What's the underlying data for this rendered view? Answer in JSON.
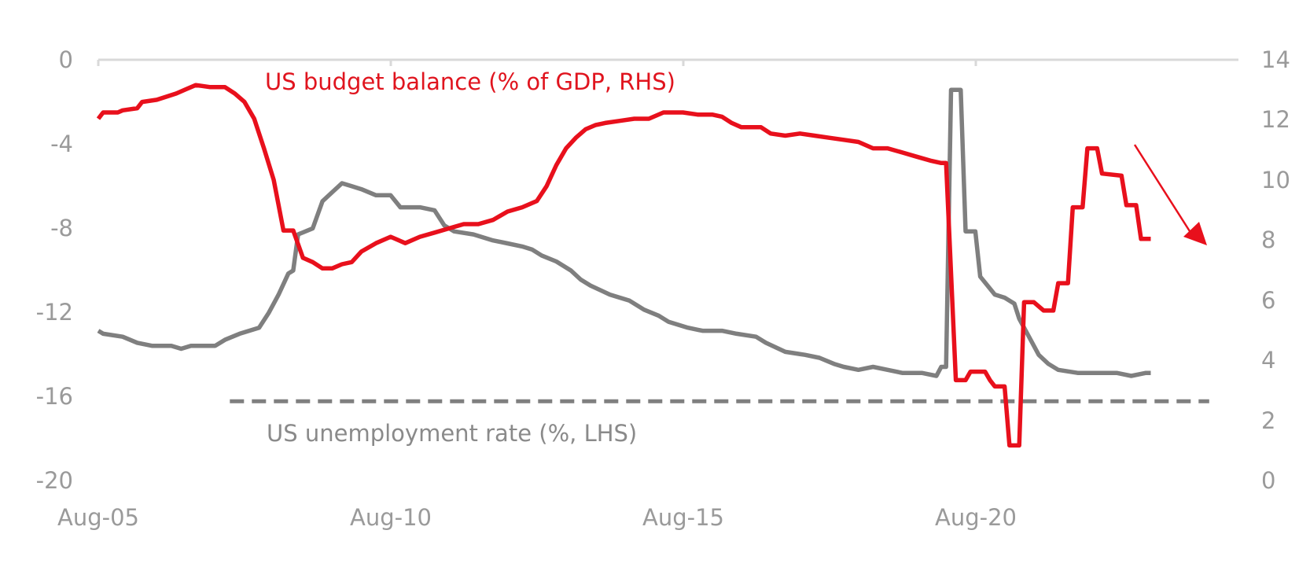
{
  "chart_data": {
    "type": "line",
    "title": "",
    "left_axis": {
      "ticks": [
        "0",
        "-4",
        "-8",
        "-12",
        "-16",
        "-20"
      ],
      "values": [
        0,
        -4,
        -8,
        -12,
        -16,
        -20
      ],
      "range": [
        -20,
        0
      ]
    },
    "right_axis": {
      "ticks": [
        "14",
        "12",
        "10",
        "8",
        "6",
        "4",
        "2",
        "0"
      ],
      "values": [
        14,
        12,
        10,
        8,
        6,
        4,
        2,
        0
      ],
      "range": [
        0,
        14
      ]
    },
    "x_axis": {
      "ticks": [
        "Aug-05",
        "Aug-10",
        "Aug-15",
        "Aug-20"
      ],
      "values": [
        2005.583,
        2010.583,
        2015.583,
        2020.583
      ],
      "range": [
        2005.583,
        2025.083
      ]
    },
    "grid": false,
    "series": [
      {
        "name": "US budget balance (% of GDP, RHS)",
        "color": "#e8101c",
        "axis": "left",
        "points": [
          [
            2005.583,
            -2.8
          ],
          [
            2005.667,
            -2.5
          ],
          [
            2005.917,
            -2.5
          ],
          [
            2006.0,
            -2.4
          ],
          [
            2006.25,
            -2.3
          ],
          [
            2006.333,
            -2.0
          ],
          [
            2006.583,
            -1.9
          ],
          [
            2006.917,
            -1.6
          ],
          [
            2007.083,
            -1.4
          ],
          [
            2007.25,
            -1.2
          ],
          [
            2007.5,
            -1.3
          ],
          [
            2007.75,
            -1.3
          ],
          [
            2007.917,
            -1.6
          ],
          [
            2008.083,
            -2.0
          ],
          [
            2008.25,
            -2.8
          ],
          [
            2008.417,
            -4.2
          ],
          [
            2008.583,
            -5.7
          ],
          [
            2008.75,
            -8.1
          ],
          [
            2008.917,
            -8.1
          ],
          [
            2009.083,
            -9.4
          ],
          [
            2009.25,
            -9.6
          ],
          [
            2009.417,
            -9.9
          ],
          [
            2009.583,
            -9.9
          ],
          [
            2009.75,
            -9.7
          ],
          [
            2009.917,
            -9.6
          ],
          [
            2010.083,
            -9.1
          ],
          [
            2010.333,
            -8.7
          ],
          [
            2010.583,
            -8.4
          ],
          [
            2010.833,
            -8.7
          ],
          [
            2011.083,
            -8.4
          ],
          [
            2011.333,
            -8.2
          ],
          [
            2011.583,
            -8.0
          ],
          [
            2011.833,
            -7.8
          ],
          [
            2012.083,
            -7.8
          ],
          [
            2012.333,
            -7.6
          ],
          [
            2012.583,
            -7.2
          ],
          [
            2012.833,
            -7.0
          ],
          [
            2013.083,
            -6.7
          ],
          [
            2013.25,
            -6.0
          ],
          [
            2013.417,
            -5.0
          ],
          [
            2013.583,
            -4.2
          ],
          [
            2013.75,
            -3.7
          ],
          [
            2013.917,
            -3.3
          ],
          [
            2014.083,
            -3.1
          ],
          [
            2014.25,
            -3.0
          ],
          [
            2014.5,
            -2.9
          ],
          [
            2014.75,
            -2.8
          ],
          [
            2015.0,
            -2.8
          ],
          [
            2015.25,
            -2.5
          ],
          [
            2015.583,
            -2.5
          ],
          [
            2015.833,
            -2.6
          ],
          [
            2016.083,
            -2.6
          ],
          [
            2016.25,
            -2.7
          ],
          [
            2016.417,
            -3.0
          ],
          [
            2016.583,
            -3.2
          ],
          [
            2016.917,
            -3.2
          ],
          [
            2017.083,
            -3.5
          ],
          [
            2017.333,
            -3.6
          ],
          [
            2017.583,
            -3.5
          ],
          [
            2017.833,
            -3.6
          ],
          [
            2018.083,
            -3.7
          ],
          [
            2018.333,
            -3.8
          ],
          [
            2018.583,
            -3.9
          ],
          [
            2018.833,
            -4.2
          ],
          [
            2019.083,
            -4.2
          ],
          [
            2019.333,
            -4.4
          ],
          [
            2019.583,
            -4.6
          ],
          [
            2019.833,
            -4.8
          ],
          [
            2020.0,
            -4.9
          ],
          [
            2020.083,
            -4.9
          ],
          [
            2020.25,
            -15.2
          ],
          [
            2020.417,
            -15.2
          ],
          [
            2020.5,
            -14.8
          ],
          [
            2020.75,
            -14.8
          ],
          [
            2020.833,
            -15.2
          ],
          [
            2020.917,
            -15.5
          ],
          [
            2021.083,
            -15.5
          ],
          [
            2021.167,
            -18.3
          ],
          [
            2021.333,
            -18.3
          ],
          [
            2021.417,
            -11.5
          ],
          [
            2021.583,
            -11.5
          ],
          [
            2021.75,
            -11.9
          ],
          [
            2021.917,
            -11.9
          ],
          [
            2022.0,
            -10.6
          ],
          [
            2022.167,
            -10.6
          ],
          [
            2022.25,
            -7.0
          ],
          [
            2022.417,
            -7.0
          ],
          [
            2022.5,
            -4.2
          ],
          [
            2022.667,
            -4.2
          ],
          [
            2022.75,
            -5.4
          ],
          [
            2023.083,
            -5.5
          ],
          [
            2023.167,
            -6.9
          ],
          [
            2023.333,
            -6.9
          ],
          [
            2023.417,
            -8.5
          ],
          [
            2023.583,
            -8.5
          ]
        ]
      },
      {
        "name": "US unemployment rate (%, LHS)",
        "color": "#7f7f7f",
        "axis": "right",
        "points": [
          [
            2005.583,
            5.0
          ],
          [
            2005.667,
            4.9
          ],
          [
            2006.0,
            4.8
          ],
          [
            2006.25,
            4.6
          ],
          [
            2006.5,
            4.5
          ],
          [
            2006.833,
            4.5
          ],
          [
            2007.0,
            4.4
          ],
          [
            2007.167,
            4.5
          ],
          [
            2007.583,
            4.5
          ],
          [
            2007.75,
            4.7
          ],
          [
            2008.0,
            4.9
          ],
          [
            2008.333,
            5.1
          ],
          [
            2008.5,
            5.6
          ],
          [
            2008.667,
            6.2
          ],
          [
            2008.833,
            6.9
          ],
          [
            2008.917,
            7.0
          ],
          [
            2009.0,
            8.2
          ],
          [
            2009.25,
            8.4
          ],
          [
            2009.417,
            9.3
          ],
          [
            2009.583,
            9.6
          ],
          [
            2009.75,
            9.9
          ],
          [
            2009.917,
            9.8
          ],
          [
            2010.083,
            9.7
          ],
          [
            2010.333,
            9.5
          ],
          [
            2010.583,
            9.5
          ],
          [
            2010.75,
            9.1
          ],
          [
            2011.083,
            9.1
          ],
          [
            2011.333,
            9.0
          ],
          [
            2011.5,
            8.5
          ],
          [
            2011.667,
            8.3
          ],
          [
            2012.0,
            8.2
          ],
          [
            2012.333,
            8.0
          ],
          [
            2012.583,
            7.9
          ],
          [
            2012.833,
            7.8
          ],
          [
            2013.0,
            7.7
          ],
          [
            2013.167,
            7.5
          ],
          [
            2013.417,
            7.3
          ],
          [
            2013.667,
            7.0
          ],
          [
            2013.833,
            6.7
          ],
          [
            2014.0,
            6.5
          ],
          [
            2014.333,
            6.2
          ],
          [
            2014.667,
            6.0
          ],
          [
            2014.917,
            5.7
          ],
          [
            2015.167,
            5.5
          ],
          [
            2015.333,
            5.3
          ],
          [
            2015.667,
            5.1
          ],
          [
            2015.917,
            5.0
          ],
          [
            2016.25,
            5.0
          ],
          [
            2016.5,
            4.9
          ],
          [
            2016.833,
            4.8
          ],
          [
            2017.0,
            4.6
          ],
          [
            2017.333,
            4.3
          ],
          [
            2017.667,
            4.2
          ],
          [
            2017.917,
            4.1
          ],
          [
            2018.167,
            3.9
          ],
          [
            2018.333,
            3.8
          ],
          [
            2018.583,
            3.7
          ],
          [
            2018.833,
            3.8
          ],
          [
            2019.083,
            3.7
          ],
          [
            2019.333,
            3.6
          ],
          [
            2019.667,
            3.6
          ],
          [
            2019.917,
            3.5
          ],
          [
            2020.0,
            3.8
          ],
          [
            2020.083,
            3.8
          ],
          [
            2020.167,
            13.0
          ],
          [
            2020.333,
            13.0
          ],
          [
            2020.417,
            8.3
          ],
          [
            2020.583,
            8.3
          ],
          [
            2020.667,
            6.8
          ],
          [
            2020.917,
            6.2
          ],
          [
            2021.083,
            6.1
          ],
          [
            2021.25,
            5.9
          ],
          [
            2021.333,
            5.4
          ],
          [
            2021.5,
            4.8
          ],
          [
            2021.667,
            4.2
          ],
          [
            2021.833,
            3.9
          ],
          [
            2022.0,
            3.7
          ],
          [
            2022.333,
            3.6
          ],
          [
            2022.75,
            3.6
          ],
          [
            2023.0,
            3.6
          ],
          [
            2023.25,
            3.5
          ],
          [
            2023.5,
            3.6
          ],
          [
            2023.583,
            3.6
          ]
        ]
      },
      {
        "name": "",
        "color": "#7f7f7f",
        "axis": "left",
        "style": "dashed",
        "points": [
          [
            2007.833,
            -16.2
          ],
          [
            2024.583,
            -16.2
          ]
        ]
      }
    ],
    "annotations": [
      {
        "text": "US budget balance (% of GDP, RHS)",
        "color": "#e0141e"
      },
      {
        "text": "US unemployment rate (%, LHS)",
        "color": "#8a8a8a"
      },
      {
        "text": "",
        "kind": "arrow",
        "color": "#e8101c",
        "direction": "down-right"
      }
    ]
  }
}
